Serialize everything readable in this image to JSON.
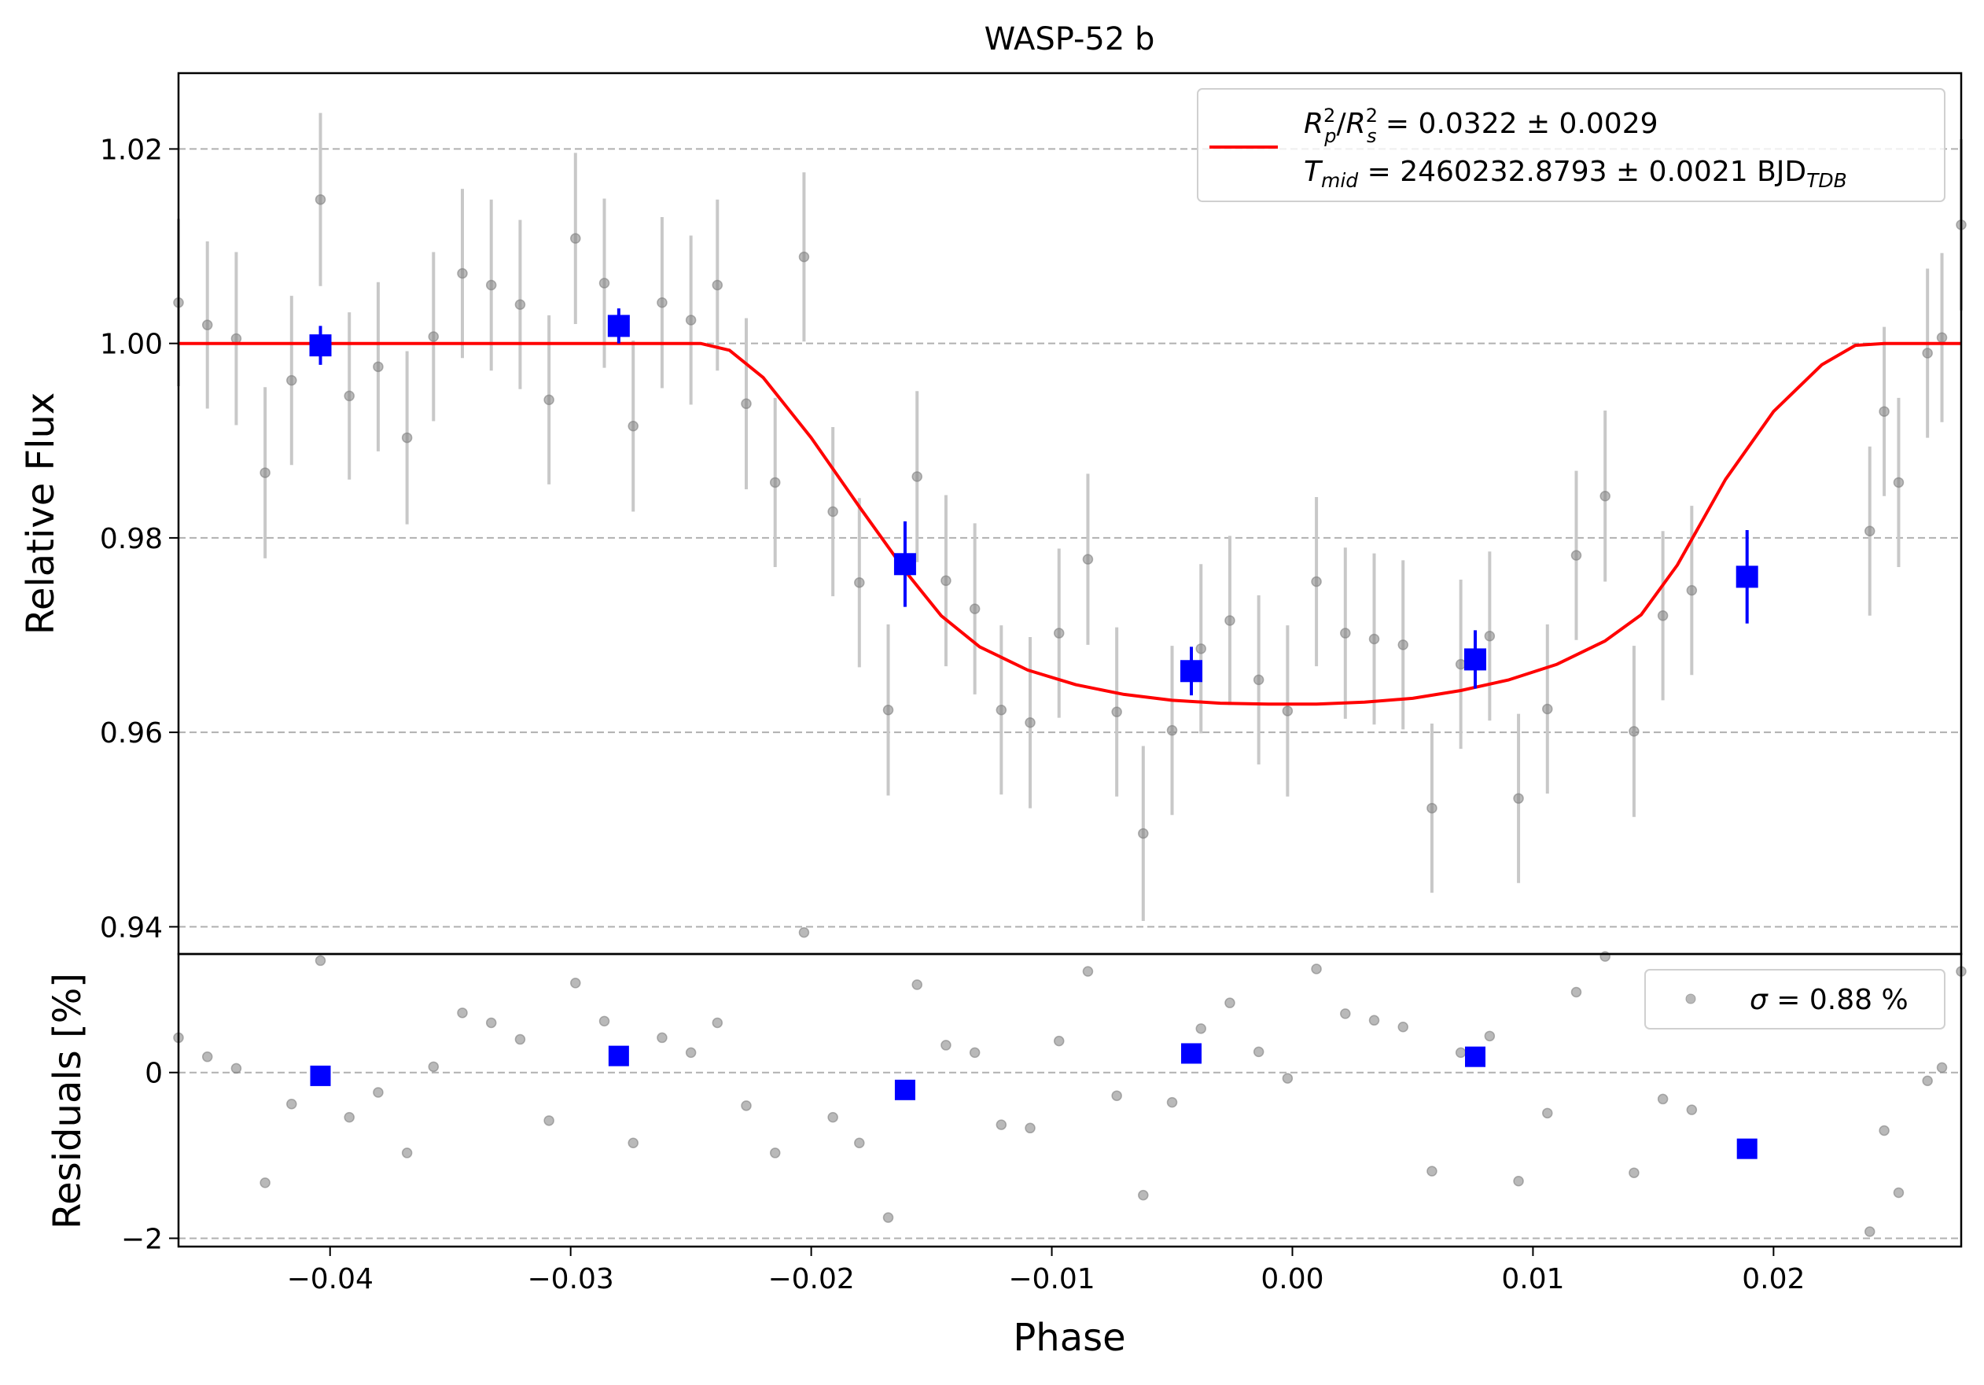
{
  "chart_data": {
    "type": "scatter",
    "title": "WASP-52 b",
    "xlabel": "Phase",
    "top_panel": {
      "ylabel": "Relative Flux",
      "xlim": [
        -0.0463,
        0.0278
      ],
      "ylim": [
        0.9372,
        1.0278
      ],
      "yticks": [
        0.94,
        0.96,
        0.98,
        1.0,
        1.02
      ],
      "ytick_labels": [
        "0.94",
        "0.96",
        "0.98",
        "1.00",
        "1.02"
      ],
      "grid": "horizontal dashed",
      "legend": {
        "placement": "top-right",
        "line1_parts": {
          "r": "R",
          "p": "p",
          "two": "2",
          "slash": "/",
          "s": "s",
          "value": " = 0.0322 ± 0.0029"
        },
        "line2_parts": {
          "t": "T",
          "mid": "mid",
          "value": " = 2460232.8793 ± 0.0021 BJD",
          "tdb": "TDB"
        }
      },
      "series": [
        {
          "kind": "unbinned",
          "color": "#808080",
          "errorbar_color": "#c8c8c8",
          "x": [
            -0.0463,
            -0.0451,
            -0.0439,
            -0.0427,
            -0.0416,
            -0.0404,
            -0.0392,
            -0.038,
            -0.0368,
            -0.0357,
            -0.0345,
            -0.0333,
            -0.0321,
            -0.0309,
            -0.0298,
            -0.0286,
            -0.0274,
            -0.0262,
            -0.025,
            -0.0239,
            -0.0227,
            -0.0215,
            -0.0203,
            -0.0191,
            -0.018,
            -0.0168,
            -0.0156,
            -0.0144,
            -0.0132,
            -0.0121,
            -0.0109,
            -0.0097,
            -0.0085,
            -0.0073,
            -0.0062,
            -0.005,
            -0.0038,
            -0.0026,
            -0.0014,
            -0.0002,
            0.001,
            0.0022,
            0.0034,
            0.0046,
            0.0058,
            0.007,
            0.0082,
            0.0094,
            0.0106,
            0.0118,
            0.013,
            0.0142,
            0.0154,
            0.0166,
            0.024,
            0.0246,
            0.0252,
            0.0264,
            0.027,
            0.0278
          ],
          "y": [
            1.0042,
            1.0019,
            1.0005,
            0.9867,
            0.9962,
            1.0148,
            0.9946,
            0.9976,
            0.9903,
            1.0007,
            1.0072,
            1.006,
            1.004,
            0.9942,
            1.0108,
            1.0062,
            0.9915,
            1.0042,
            1.0024,
            1.006,
            0.9938,
            0.9857,
            1.0089,
            0.9827,
            0.9754,
            0.9623,
            0.9863,
            0.9756,
            0.9727,
            0.9623,
            0.961,
            0.9702,
            0.9778,
            0.9621,
            0.9496,
            0.9602,
            0.9686,
            0.9715,
            0.9654,
            0.9622,
            0.9755,
            0.9702,
            0.9696,
            0.969,
            0.9522,
            0.967,
            0.9699,
            0.9532,
            0.9624,
            0.9782,
            0.9843,
            0.9601,
            0.972,
            0.9746,
            0.9807,
            0.993,
            0.9857,
            0.999,
            1.0006,
            1.0122
          ],
          "yerr": [
            0.0086,
            0.0086,
            0.0089,
            0.0088,
            0.0087,
            0.0089,
            0.0086,
            0.0087,
            0.0089,
            0.0087,
            0.0087,
            0.0088,
            0.0087,
            0.0087,
            0.0088,
            0.0087,
            0.0088,
            0.0088,
            0.0087,
            0.0088,
            0.0088,
            0.0087,
            0.0087,
            0.0087,
            0.0087,
            0.0088,
            0.0088,
            0.0088,
            0.0088,
            0.0087,
            0.0088,
            0.0087,
            0.0088,
            0.0087,
            0.009,
            0.0087,
            0.0087,
            0.0087,
            0.0087,
            0.0088,
            0.0087,
            0.0088,
            0.0088,
            0.0087,
            0.0087,
            0.0087,
            0.0087,
            0.0087,
            0.0087,
            0.0087,
            0.0088,
            0.0088,
            0.0087,
            0.0087,
            0.0087,
            0.0087,
            0.0087,
            0.0087,
            0.0087,
            0.0088
          ]
        },
        {
          "kind": "binned",
          "color": "#0000ff",
          "x": [
            -0.0404,
            -0.028,
            -0.0161,
            -0.0042,
            0.0076,
            0.0189
          ],
          "y": [
            0.9998,
            1.0018,
            0.9773,
            0.9663,
            0.9675,
            0.976
          ],
          "yerr": [
            0.002,
            0.0018,
            0.0044,
            0.0025,
            0.003,
            0.0048
          ]
        },
        {
          "kind": "model",
          "color": "#ff0000",
          "x": [
            -0.0463,
            -0.0246,
            -0.0234,
            -0.022,
            -0.02,
            -0.018,
            -0.016,
            -0.0146,
            -0.013,
            -0.011,
            -0.009,
            -0.007,
            -0.005,
            -0.003,
            -0.001,
            0.001,
            0.003,
            0.005,
            0.007,
            0.009,
            0.011,
            0.013,
            0.0145,
            0.016,
            0.018,
            0.02,
            0.022,
            0.0234,
            0.0246,
            0.0278
          ],
          "y": [
            1.0,
            1.0,
            0.9993,
            0.9965,
            0.9903,
            0.9832,
            0.9763,
            0.972,
            0.9688,
            0.9664,
            0.9649,
            0.9639,
            0.9633,
            0.963,
            0.9629,
            0.9629,
            0.9631,
            0.9635,
            0.9643,
            0.9654,
            0.967,
            0.9694,
            0.9721,
            0.9772,
            0.986,
            0.993,
            0.9978,
            0.9998,
            1.0,
            1.0
          ]
        }
      ]
    },
    "bottom_panel": {
      "ylabel": "Residuals [%]",
      "xlim": [
        -0.0463,
        0.0278
      ],
      "ylim": [
        -2.1,
        1.43
      ],
      "yticks": [
        -2,
        0
      ],
      "ytick_labels": [
        "−2",
        "0"
      ],
      "grid": "horizontal dashed",
      "legend": {
        "placement": "top-right",
        "sigma": "σ",
        "value": " = 0.88 %"
      },
      "series": [
        {
          "kind": "unbinned",
          "color": "#808080",
          "x": [
            -0.0463,
            -0.0451,
            -0.0439,
            -0.0427,
            -0.0416,
            -0.0404,
            -0.0392,
            -0.038,
            -0.0368,
            -0.0357,
            -0.0345,
            -0.0333,
            -0.0321,
            -0.0309,
            -0.0298,
            -0.0286,
            -0.0274,
            -0.0262,
            -0.025,
            -0.0239,
            -0.0227,
            -0.0215,
            -0.0203,
            -0.0191,
            -0.018,
            -0.0168,
            -0.0156,
            -0.0144,
            -0.0132,
            -0.0121,
            -0.0109,
            -0.0097,
            -0.0085,
            -0.0073,
            -0.0062,
            -0.005,
            -0.0038,
            -0.0026,
            -0.0014,
            -0.0002,
            0.001,
            0.0022,
            0.0034,
            0.0046,
            0.0058,
            0.007,
            0.0082,
            0.0094,
            0.0106,
            0.0118,
            0.013,
            0.0142,
            0.0154,
            0.0166,
            0.024,
            0.0246,
            0.0252,
            0.0264,
            0.027,
            0.0278
          ],
          "y": [
            0.42,
            0.19,
            0.05,
            -1.33,
            -0.38,
            1.35,
            -0.54,
            -0.24,
            -0.97,
            0.07,
            0.72,
            0.6,
            0.4,
            -0.58,
            1.08,
            0.62,
            -0.85,
            0.42,
            0.24,
            0.6,
            -0.4,
            -0.97,
            1.69,
            -0.54,
            -0.85,
            -1.75,
            1.06,
            0.33,
            0.24,
            -0.63,
            -0.67,
            0.38,
            1.22,
            -0.28,
            -1.48,
            -0.36,
            0.53,
            0.84,
            0.25,
            -0.07,
            1.25,
            0.71,
            0.63,
            0.55,
            -1.19,
            0.24,
            0.44,
            -1.31,
            -0.49,
            0.97,
            1.4,
            -1.21,
            -0.32,
            -0.45,
            -1.92,
            -0.7,
            -1.45,
            -0.1,
            0.06,
            1.22
          ]
        },
        {
          "kind": "binned",
          "color": "#0000ff",
          "x": [
            -0.0404,
            -0.028,
            -0.0161,
            -0.0042,
            0.0076,
            0.0189
          ],
          "y": [
            -0.04,
            0.2,
            -0.21,
            0.23,
            0.19,
            -0.92
          ]
        }
      ]
    },
    "xticks": [
      -0.04,
      -0.03,
      -0.02,
      -0.01,
      0.0,
      0.01,
      0.02
    ],
    "xtick_labels": [
      "−0.04",
      "−0.03",
      "−0.02",
      "−0.01",
      "0.00",
      "0.01",
      "0.02"
    ]
  }
}
